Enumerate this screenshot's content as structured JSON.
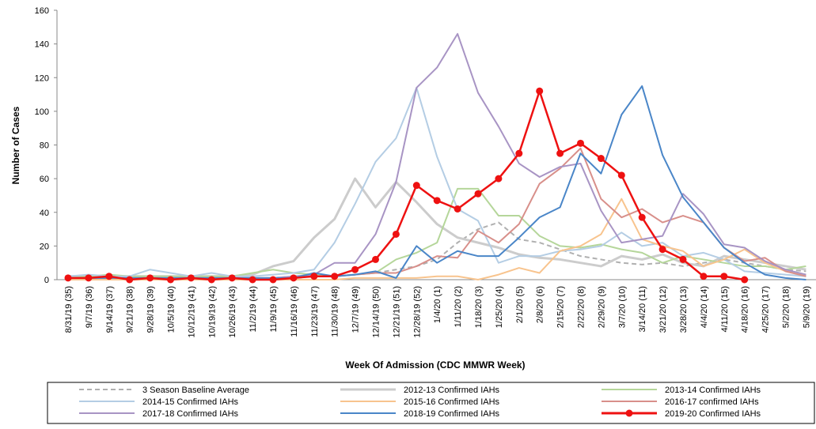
{
  "chart_data": {
    "type": "line",
    "y_label": "Number of Cases",
    "x_label": "Week Of Admission  (CDC MMWR Week)",
    "categories": [
      "8/31/19 (35)",
      "9/7/19 (36)",
      "9/14/19 (37)",
      "9/21/19 (38)",
      "9/28/19 (39)",
      "10/5/19 (40)",
      "10/12/19 (41)",
      "10/19/19 (42)",
      "10/26/19 (43)",
      "11/2/19 (44)",
      "11/9/19 (45)",
      "11/16/19 (46)",
      "11/23/19 (47)",
      "11/30/19 (48)",
      "12/7/19 (49)",
      "12/14/19 (50)",
      "12/21/19 (51)",
      "12/28/19 (52)",
      "1/4/20 (1)",
      "1/11/20 (2)",
      "1/18/20 (3)",
      "1/25/20 (4)",
      "2/1/20 (5)",
      "2/8/20 (6)",
      "2/15/20 (7)",
      "2/22/20 (8)",
      "2/29/20 (9)",
      "3/7/20 (10)",
      "3/14/20 (11)",
      "3/21/20 (12)",
      "3/28/20 (13)",
      "4/4/20 (14)",
      "4/11/20 (15)",
      "4/18/20 (16)",
      "4/25/20 (17)",
      "5/2/20 (18)",
      "5/9/20 (19)"
    ],
    "ylim": [
      0,
      160
    ],
    "yticks": [
      0,
      20,
      40,
      60,
      80,
      100,
      120,
      140,
      160
    ],
    "grid": false,
    "series": [
      {
        "name": "3 Season Baseline Average",
        "color": "#b0b0b0",
        "dashed": true,
        "values": [
          1,
          1,
          1,
          1,
          1,
          1,
          1,
          1,
          1,
          1,
          1,
          2,
          2,
          2,
          3,
          4,
          6,
          8,
          12,
          22,
          30,
          34,
          24,
          22,
          18,
          14,
          12,
          10,
          9,
          10,
          8,
          10,
          12,
          10,
          8,
          6,
          5
        ]
      },
      {
        "name": "2012-13 Confirmed IAHs",
        "color": "#cccccc",
        "thick": true,
        "values": [
          2,
          2,
          2,
          2,
          2,
          2,
          2,
          2,
          2,
          3,
          8,
          11,
          25,
          36,
          60,
          43,
          58,
          46,
          33,
          25,
          22,
          19,
          15,
          13,
          12,
          10,
          8,
          14,
          12,
          15,
          10,
          8,
          14,
          12,
          10,
          8,
          6
        ]
      },
      {
        "name": "2013-14 Confirmed IAHs",
        "color": "#b5d69a",
        "values": [
          2,
          2,
          3,
          2,
          2,
          2,
          2,
          2,
          2,
          4,
          6,
          4,
          3,
          2,
          3,
          4,
          12,
          16,
          22,
          54,
          54,
          38,
          38,
          26,
          20,
          19,
          21,
          18,
          16,
          10,
          14,
          12,
          10,
          8,
          8,
          6,
          8
        ]
      },
      {
        "name": "2014-15 Confirmed IAHs",
        "color": "#b4cde4",
        "values": [
          2,
          3,
          2,
          2,
          6,
          4,
          2,
          4,
          2,
          2,
          3,
          4,
          6,
          22,
          45,
          70,
          84,
          114,
          73,
          42,
          35,
          10,
          14,
          14,
          17,
          18,
          20,
          28,
          20,
          22,
          14,
          16,
          12,
          5,
          4,
          3,
          2
        ]
      },
      {
        "name": "2015-16 Confirmed IAHs",
        "color": "#f8c48e",
        "values": [
          0,
          0,
          0,
          0,
          0,
          0,
          0,
          0,
          0,
          0,
          0,
          0,
          0,
          0,
          1,
          1,
          1,
          1,
          2,
          2,
          0,
          3,
          7,
          4,
          17,
          20,
          27,
          48,
          24,
          20,
          17,
          8,
          12,
          18,
          10,
          5,
          3
        ]
      },
      {
        "name": "2016-17 confirmed IAHs",
        "color": "#d88f8a",
        "values": [
          1,
          1,
          1,
          1,
          1,
          1,
          1,
          1,
          1,
          1,
          1,
          1,
          2,
          2,
          3,
          4,
          4,
          8,
          14,
          13,
          29,
          22,
          33,
          57,
          66,
          78,
          48,
          37,
          42,
          34,
          38,
          34,
          19,
          11,
          13,
          5,
          2
        ]
      },
      {
        "name": "2017-18 Confirmed IAHs",
        "color": "#a894c4",
        "values": [
          1,
          1,
          1,
          1,
          1,
          1,
          1,
          1,
          1,
          1,
          1,
          2,
          3,
          10,
          10,
          27,
          58,
          114,
          126,
          146,
          111,
          91,
          69,
          61,
          67,
          69,
          41,
          22,
          24,
          26,
          51,
          39,
          21,
          19,
          11,
          6,
          3
        ]
      },
      {
        "name": "2018-19 Confirmed IAHs",
        "color": "#4a86c8",
        "values": [
          1,
          1,
          1,
          1,
          1,
          1,
          1,
          1,
          1,
          1,
          1,
          1,
          4,
          2,
          3,
          5,
          1,
          20,
          10,
          17,
          14,
          14,
          25,
          37,
          43,
          75,
          63,
          98,
          115,
          74,
          49,
          34,
          19,
          10,
          3,
          1,
          0
        ]
      },
      {
        "name": "2019-20 Confirmed IAHs",
        "color": "#ee1111",
        "markers": true,
        "thick": true,
        "values": [
          1,
          1,
          2,
          0,
          1,
          0,
          1,
          0,
          1,
          0,
          0,
          1,
          2,
          2,
          6,
          12,
          27,
          56,
          47,
          42,
          51,
          60,
          75,
          112,
          75,
          81,
          72,
          62,
          37,
          18,
          12,
          2,
          2,
          0,
          null,
          null,
          null
        ]
      }
    ]
  }
}
